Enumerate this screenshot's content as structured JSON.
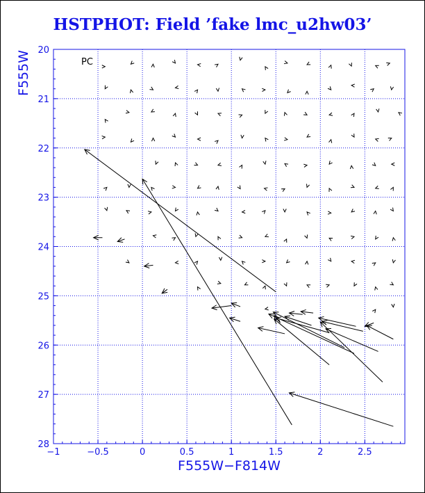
{
  "chart_data": {
    "type": "scatter",
    "title": "HSTPHOT: Field ’fake lmc_u2hw03’",
    "xlabel": "F555W−F814W",
    "ylabel": "F555W",
    "panel_label": "PC",
    "xlim": [
      -1.0,
      2.95
    ],
    "ylim": [
      28.0,
      20.0
    ],
    "y_inverted": true,
    "grid": true,
    "grid_style": "dotted",
    "x_major_ticks": [
      -1,
      -0.5,
      0,
      0.5,
      1,
      1.5,
      2,
      2.5
    ],
    "x_tick_labels": [
      "−1",
      "−0.5",
      "0",
      "0.5",
      "1",
      "1.5",
      "2",
      "2.5"
    ],
    "y_major_ticks": [
      20,
      21,
      22,
      23,
      24,
      25,
      26,
      27,
      28
    ],
    "y_tick_labels": [
      "20",
      "21",
      "22",
      "23",
      "24",
      "25",
      "26",
      "27",
      "28"
    ],
    "colors": {
      "axes": "#1414e6",
      "arrows": "#000000",
      "title": "#1414e6"
    },
    "series": [
      {
        "marker": "arrow",
        "description_points": "each vector runs from the input (true) position to the recovered position; arrowhead at recovered position",
        "arrows": [
          {
            "x1": 2.82,
            "y1": 27.65,
            "x2": 1.65,
            "y2": 26.97
          },
          {
            "x1": 1.68,
            "y1": 27.62,
            "x2": 0.0,
            "y2": 22.63
          },
          {
            "x1": 1.5,
            "y1": 24.92,
            "x2": -0.65,
            "y2": 22.03
          },
          {
            "x1": 2.38,
            "y1": 26.17,
            "x2": 1.42,
            "y2": 25.37
          },
          {
            "x1": 2.1,
            "y1": 26.4,
            "x2": 1.48,
            "y2": 25.47
          },
          {
            "x1": 2.27,
            "y1": 26.05,
            "x2": 1.47,
            "y2": 25.33
          },
          {
            "x1": 2.1,
            "y1": 25.75,
            "x2": 1.5,
            "y2": 25.45
          },
          {
            "x1": 1.6,
            "y1": 25.77,
            "x2": 1.3,
            "y2": 25.65
          },
          {
            "x1": 2.4,
            "y1": 25.62,
            "x2": 1.98,
            "y2": 25.45
          },
          {
            "x1": 2.48,
            "y1": 25.72,
            "x2": 2.02,
            "y2": 25.52
          },
          {
            "x1": 2.7,
            "y1": 26.75,
            "x2": 2.0,
            "y2": 25.53
          },
          {
            "x1": 2.65,
            "y1": 26.13,
            "x2": 2.06,
            "y2": 25.67
          },
          {
            "x1": 2.82,
            "y1": 25.88,
            "x2": 2.52,
            "y2": 25.6
          },
          {
            "x1": 1.8,
            "y1": 25.38,
            "x2": 1.65,
            "y2": 25.35
          },
          {
            "x1": 1.1,
            "y1": 25.52,
            "x2": 0.98,
            "y2": 25.45
          },
          {
            "x1": 1.0,
            "y1": 25.2,
            "x2": 0.78,
            "y2": 25.25
          },
          {
            "x1": 1.1,
            "y1": 25.22,
            "x2": 1.0,
            "y2": 25.15
          },
          {
            "x1": 0.28,
            "y1": 24.87,
            "x2": 0.22,
            "y2": 24.95
          },
          {
            "x1": 1.92,
            "y1": 25.35,
            "x2": 1.78,
            "y2": 25.32
          },
          {
            "x1": -0.45,
            "y1": 23.82,
            "x2": -0.55,
            "y2": 23.82
          },
          {
            "x1": -0.2,
            "y1": 23.85,
            "x2": -0.28,
            "y2": 23.9
          },
          {
            "x1": 0.12,
            "y1": 24.38,
            "x2": 0.02,
            "y2": 24.4
          },
          {
            "x1": 2.6,
            "y1": 25.55,
            "x2": 2.5,
            "y2": 25.62
          },
          {
            "x1": 1.55,
            "y1": 25.55,
            "x2": 1.48,
            "y2": 25.4
          },
          {
            "x1": 1.9,
            "y1": 25.6,
            "x2": 1.6,
            "y2": 25.42
          }
        ],
        "small_markers": [
          [
            -0.42,
            20.35
          ],
          [
            -0.13,
            20.3
          ],
          [
            0.12,
            20.3
          ],
          [
            0.37,
            20.28
          ],
          [
            0.62,
            20.31
          ],
          [
            0.85,
            20.3
          ],
          [
            1.1,
            20.22
          ],
          [
            1.38,
            20.35
          ],
          [
            1.63,
            20.28
          ],
          [
            1.85,
            20.31
          ],
          [
            2.12,
            20.32
          ],
          [
            2.35,
            20.34
          ],
          [
            2.62,
            20.33
          ],
          [
            2.78,
            20.28
          ],
          [
            -0.42,
            20.8
          ],
          [
            -0.13,
            20.82
          ],
          [
            0.12,
            20.82
          ],
          [
            0.37,
            20.78
          ],
          [
            0.62,
            20.82
          ],
          [
            0.85,
            20.85
          ],
          [
            1.12,
            20.8
          ],
          [
            1.38,
            20.82
          ],
          [
            1.63,
            20.88
          ],
          [
            1.85,
            20.85
          ],
          [
            2.12,
            20.82
          ],
          [
            2.35,
            20.73
          ],
          [
            2.6,
            20.8
          ],
          [
            2.8,
            20.82
          ],
          [
            -0.42,
            21.42
          ],
          [
            -0.15,
            21.28
          ],
          [
            0.1,
            21.27
          ],
          [
            0.37,
            21.3
          ],
          [
            0.62,
            21.33
          ],
          [
            0.85,
            21.3
          ],
          [
            1.12,
            21.33
          ],
          [
            1.38,
            21.3
          ],
          [
            1.6,
            21.28
          ],
          [
            1.85,
            21.33
          ],
          [
            2.1,
            21.33
          ],
          [
            2.38,
            21.3
          ],
          [
            2.65,
            21.27
          ],
          [
            2.88,
            21.28
          ],
          [
            -0.42,
            21.78
          ],
          [
            -0.13,
            21.88
          ],
          [
            0.12,
            21.8
          ],
          [
            0.37,
            21.78
          ],
          [
            0.62,
            21.82
          ],
          [
            0.85,
            21.85
          ],
          [
            1.12,
            21.8
          ],
          [
            1.38,
            21.8
          ],
          [
            1.63,
            21.83
          ],
          [
            1.85,
            21.78
          ],
          [
            2.12,
            21.83
          ],
          [
            2.38,
            21.78
          ],
          [
            2.62,
            21.82
          ],
          [
            2.8,
            21.8
          ],
          [
            0.15,
            22.33
          ],
          [
            0.37,
            22.3
          ],
          [
            0.62,
            22.35
          ],
          [
            0.85,
            22.35
          ],
          [
            1.12,
            22.35
          ],
          [
            1.38,
            22.33
          ],
          [
            1.6,
            22.32
          ],
          [
            1.85,
            22.35
          ],
          [
            2.1,
            22.33
          ],
          [
            2.35,
            22.36
          ],
          [
            2.62,
            22.36
          ],
          [
            2.8,
            22.33
          ],
          [
            -0.4,
            22.8
          ],
          [
            -0.15,
            22.8
          ],
          [
            0.1,
            22.8
          ],
          [
            0.37,
            22.8
          ],
          [
            0.62,
            22.82
          ],
          [
            0.85,
            22.78
          ],
          [
            1.1,
            22.83
          ],
          [
            1.37,
            22.82
          ],
          [
            1.6,
            22.83
          ],
          [
            1.85,
            22.8
          ],
          [
            2.1,
            22.82
          ],
          [
            2.38,
            22.8
          ],
          [
            2.62,
            22.82
          ],
          [
            2.82,
            22.8
          ],
          [
            -0.4,
            23.27
          ],
          [
            -0.18,
            23.27
          ],
          [
            0.1,
            23.3
          ],
          [
            0.37,
            23.28
          ],
          [
            0.62,
            23.3
          ],
          [
            0.85,
            23.28
          ],
          [
            1.12,
            23.3
          ],
          [
            1.38,
            23.27
          ],
          [
            1.6,
            23.3
          ],
          [
            1.85,
            23.3
          ],
          [
            2.12,
            23.32
          ],
          [
            2.35,
            23.3
          ],
          [
            2.62,
            23.28
          ],
          [
            2.82,
            23.28
          ],
          [
            0.12,
            23.78
          ],
          [
            0.37,
            23.82
          ],
          [
            0.6,
            23.8
          ],
          [
            0.85,
            23.8
          ],
          [
            1.12,
            23.82
          ],
          [
            1.38,
            23.8
          ],
          [
            1.62,
            23.85
          ],
          [
            1.85,
            23.83
          ],
          [
            2.1,
            23.83
          ],
          [
            2.38,
            23.8
          ],
          [
            2.62,
            23.85
          ],
          [
            2.82,
            23.82
          ],
          [
            -0.15,
            24.33
          ],
          [
            0.37,
            24.33
          ],
          [
            0.62,
            24.3
          ],
          [
            0.88,
            24.28
          ],
          [
            1.12,
            24.3
          ],
          [
            1.38,
            24.3
          ],
          [
            1.62,
            24.33
          ],
          [
            1.85,
            24.3
          ],
          [
            2.12,
            24.3
          ],
          [
            2.35,
            24.3
          ],
          [
            2.62,
            24.33
          ],
          [
            2.82,
            24.33
          ],
          [
            0.62,
            24.82
          ],
          [
            0.88,
            24.75
          ],
          [
            1.15,
            24.78
          ],
          [
            1.38,
            24.8
          ],
          [
            1.62,
            24.8
          ],
          [
            1.85,
            24.78
          ],
          [
            2.1,
            24.78
          ],
          [
            2.38,
            24.8
          ],
          [
            2.62,
            24.82
          ],
          [
            2.82,
            24.78
          ],
          [
            1.38,
            25.27
          ],
          [
            2.62,
            25.28
          ],
          [
            2.82,
            25.23
          ]
        ]
      }
    ]
  }
}
